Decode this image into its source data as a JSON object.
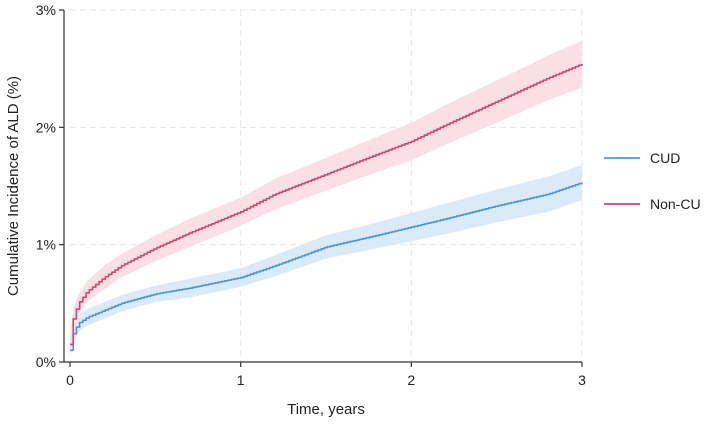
{
  "chart_data": {
    "type": "line",
    "title": "",
    "xlabel": "Time, years",
    "ylabel": "Cumulative Incidence of ALD (%)",
    "xlim": [
      0,
      3
    ],
    "ylim": [
      0,
      3
    ],
    "x_ticks": [
      0,
      1,
      2,
      3
    ],
    "x_tick_labels": [
      "0",
      "1",
      "2",
      "3"
    ],
    "y_ticks": [
      0,
      1,
      2,
      3
    ],
    "y_tick_labels": [
      "0%",
      "1%",
      "2%",
      "3%"
    ],
    "grid": true,
    "legend_position": "right",
    "confidence_bands": true,
    "series": [
      {
        "name": "CUD",
        "color": "#4a97d6",
        "band_color": "#d6e8f8",
        "x": [
          0,
          0.02,
          0.05,
          0.1,
          0.2,
          0.3,
          0.5,
          0.7,
          1.0,
          1.2,
          1.5,
          1.8,
          2.0,
          2.2,
          2.5,
          2.8,
          3.0
        ],
        "values": [
          0.1,
          0.25,
          0.33,
          0.38,
          0.44,
          0.5,
          0.58,
          0.63,
          0.72,
          0.82,
          0.98,
          1.08,
          1.15,
          1.22,
          1.33,
          1.43,
          1.53
        ],
        "lower": [
          0.05,
          0.18,
          0.26,
          0.31,
          0.37,
          0.43,
          0.51,
          0.55,
          0.64,
          0.73,
          0.88,
          0.97,
          1.03,
          1.09,
          1.19,
          1.28,
          1.38
        ],
        "upper": [
          0.15,
          0.32,
          0.4,
          0.45,
          0.51,
          0.57,
          0.65,
          0.71,
          0.8,
          0.91,
          1.08,
          1.19,
          1.27,
          1.35,
          1.47,
          1.58,
          1.68
        ]
      },
      {
        "name": "Non-CU",
        "color": "#c9496e",
        "band_color": "#f9dbe3",
        "x": [
          0,
          0.02,
          0.05,
          0.1,
          0.2,
          0.3,
          0.5,
          0.7,
          1.0,
          1.2,
          1.5,
          1.8,
          2.0,
          2.2,
          2.5,
          2.8,
          3.0
        ],
        "values": [
          0.15,
          0.38,
          0.5,
          0.6,
          0.72,
          0.82,
          0.97,
          1.1,
          1.28,
          1.43,
          1.6,
          1.77,
          1.88,
          2.02,
          2.22,
          2.42,
          2.54
        ],
        "lower": [
          0.08,
          0.3,
          0.42,
          0.51,
          0.62,
          0.72,
          0.86,
          0.98,
          1.16,
          1.3,
          1.46,
          1.62,
          1.72,
          1.85,
          2.04,
          2.23,
          2.34
        ],
        "upper": [
          0.22,
          0.46,
          0.58,
          0.69,
          0.82,
          0.92,
          1.08,
          1.22,
          1.4,
          1.56,
          1.74,
          1.92,
          2.04,
          2.19,
          2.4,
          2.61,
          2.74
        ]
      }
    ]
  }
}
